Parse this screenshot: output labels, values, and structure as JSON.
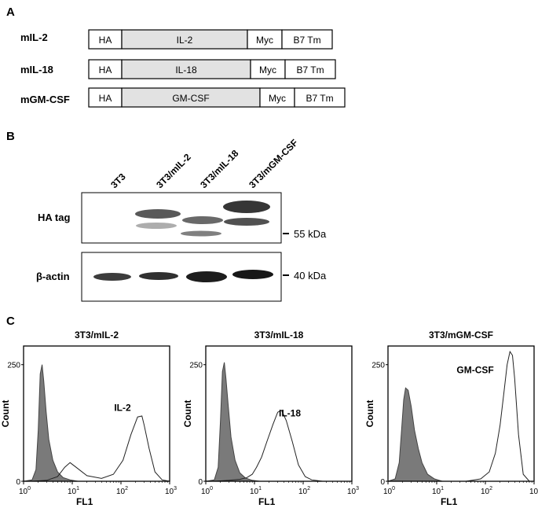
{
  "panel_a": {
    "letter": "A",
    "constructs": [
      {
        "name": "mIL-2",
        "segments": [
          "HA",
          "IL-2",
          "Myc",
          "B7 Tm"
        ]
      },
      {
        "name": "mIL-18",
        "segments": [
          "HA",
          "IL-18",
          "Myc",
          "B7 Tm"
        ]
      },
      {
        "name": "mGM-CSF",
        "segments": [
          "HA",
          "GM-CSF",
          "Myc",
          "B7 Tm"
        ]
      }
    ]
  },
  "panel_b": {
    "letter": "B",
    "lanes": [
      "3T3",
      "3T3/mIL-2",
      "3T3/mIL-18",
      "3T3/mGM-CSF"
    ],
    "blots": [
      {
        "label": "HA tag",
        "marker": "55 kDa"
      },
      {
        "label": "β-actin",
        "marker": "40 kDa"
      }
    ]
  },
  "panel_c": {
    "letter": "C",
    "y_label": "Count",
    "x_label": "FL1",
    "y_ticks": [
      "250",
      "0"
    ],
    "x_ticks": [
      {
        "base": "10",
        "exp": "0"
      },
      {
        "base": "10",
        "exp": "1"
      },
      {
        "base": "10",
        "exp": "2"
      },
      {
        "base": "10",
        "exp": "3"
      }
    ],
    "plots": [
      {
        "title": "3T3/mIL-2",
        "peak_label": "IL-2"
      },
      {
        "title": "3T3/mIL-18",
        "peak_label": "IL-18"
      },
      {
        "title": "3T3/mGM-CSF",
        "peak_label": "GM-CSF"
      }
    ]
  },
  "chart_data": [
    {
      "type": "area",
      "title": "3T3/mIL-2",
      "xlabel": "FL1",
      "ylabel": "Count",
      "xscale": "log",
      "xlim": [
        1,
        1000
      ],
      "ylim": [
        0,
        290
      ],
      "series": [
        {
          "style": "filled-gray",
          "x": [
            1,
            1.5,
            1.8,
            2.0,
            2.2,
            2.4,
            2.6,
            2.9,
            3.3,
            4,
            5,
            6.5,
            9,
            13
          ],
          "values": [
            0,
            3,
            25,
            110,
            230,
            250,
            215,
            150,
            90,
            45,
            20,
            8,
            3,
            0
          ]
        },
        {
          "style": "outline",
          "label": "IL-2",
          "x": [
            1.5,
            3,
            5,
            7,
            9,
            12,
            20,
            40,
            70,
            110,
            160,
            220,
            270,
            300,
            380,
            500,
            700,
            1000
          ],
          "values": [
            0,
            2,
            10,
            30,
            40,
            30,
            12,
            6,
            15,
            45,
            100,
            138,
            140,
            120,
            70,
            20,
            3,
            0
          ]
        }
      ]
    },
    {
      "type": "area",
      "title": "3T3/mIL-18",
      "xlabel": "FL1",
      "ylabel": "Count",
      "xscale": "log",
      "xlim": [
        1,
        1000
      ],
      "ylim": [
        0,
        290
      ],
      "series": [
        {
          "style": "filled-gray",
          "x": [
            1,
            1.5,
            1.8,
            2.0,
            2.2,
            2.4,
            2.6,
            2.9,
            3.3,
            4,
            5,
            6.5,
            9,
            13
          ],
          "values": [
            0,
            3,
            30,
            130,
            235,
            255,
            220,
            160,
            95,
            45,
            18,
            7,
            2,
            0
          ]
        },
        {
          "style": "outline",
          "label": "IL-18",
          "x": [
            1.5,
            3,
            5,
            7,
            9,
            11,
            14,
            18,
            24,
            30,
            36,
            45,
            60,
            80,
            110,
            150,
            250,
            1000
          ],
          "values": [
            0,
            2,
            4,
            8,
            15,
            30,
            52,
            85,
            122,
            148,
            152,
            130,
            85,
            35,
            10,
            3,
            0,
            0
          ]
        }
      ]
    },
    {
      "type": "area",
      "title": "3T3/mGM-CSF",
      "xlabel": "FL1",
      "ylabel": "Count",
      "xscale": "log",
      "xlim": [
        1,
        1000
      ],
      "ylim": [
        0,
        290
      ],
      "series": [
        {
          "style": "filled-gray",
          "x": [
            1,
            1.4,
            1.7,
            1.9,
            2.1,
            2.3,
            2.6,
            3.0,
            3.5,
            4.2,
            5,
            6.5,
            9,
            13
          ],
          "values": [
            0,
            5,
            40,
            110,
            175,
            200,
            195,
            160,
            110,
            70,
            40,
            15,
            5,
            0
          ]
        },
        {
          "style": "outline",
          "label": "GM-CSF",
          "x": [
            10,
            40,
            80,
            120,
            160,
            200,
            240,
            280,
            320,
            360,
            400,
            480,
            600,
            800,
            1000
          ],
          "values": [
            0,
            0,
            5,
            20,
            60,
            120,
            190,
            250,
            278,
            270,
            220,
            100,
            15,
            0,
            0
          ]
        }
      ]
    }
  ]
}
